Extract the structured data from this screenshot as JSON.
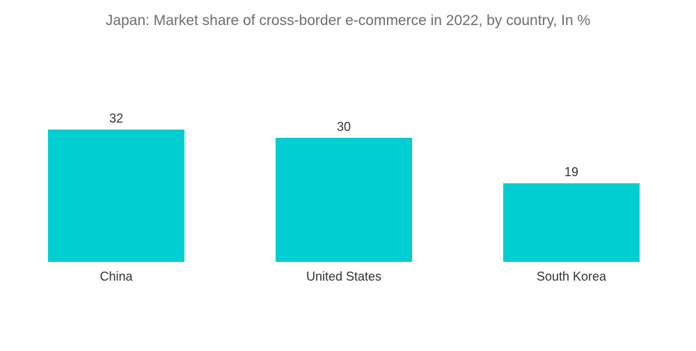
{
  "chart_data": {
    "type": "bar",
    "title": "Japan: Market share of cross-border e-commerce in 2022, by country, In %",
    "categories": [
      "China",
      "United States",
      "South Korea"
    ],
    "values": [
      32,
      30,
      19
    ],
    "xlabel": "",
    "ylabel": "",
    "ylim": [
      0,
      32
    ],
    "grid": false,
    "legend": "none",
    "bar_color": "#00CED1"
  }
}
